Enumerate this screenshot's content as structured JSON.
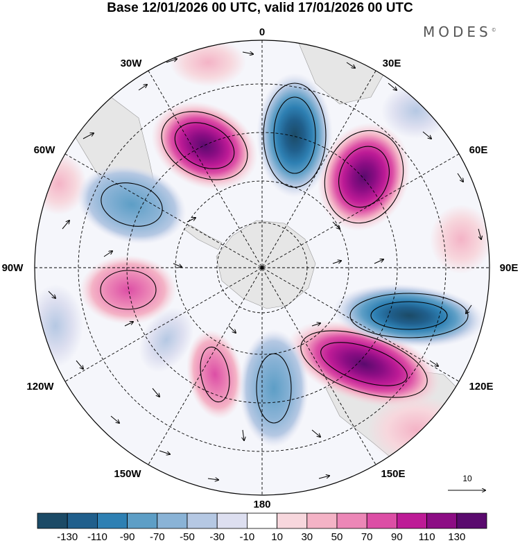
{
  "header": {
    "title": "Base 12/01/2026 00 UTC, valid 17/01/2026 00 UTC",
    "brand": "MODES",
    "brand_mark": "©"
  },
  "map": {
    "projection": "south-polar-stereographic",
    "lon_labels": {
      "lon_0": "0",
      "lon_30e": "30E",
      "lon_60e": "60E",
      "lon_90e": "90E",
      "lon_120e": "120E",
      "lon_150e": "150E",
      "lon_180": "180",
      "lon_150w": "150W",
      "lon_120w": "120W",
      "lon_90w": "90W",
      "lon_60w": "60W",
      "lon_30w": "30W"
    },
    "vector_reference": {
      "label": "10"
    }
  },
  "colorbar": {
    "labels": [
      "-130",
      "-110",
      "-90",
      "-70",
      "-50",
      "-30",
      "-10",
      "10",
      "30",
      "50",
      "70",
      "90",
      "110",
      "130"
    ],
    "colors": [
      "#1b4a66",
      "#205f8c",
      "#2e80b3",
      "#5d9ec6",
      "#8ab3d6",
      "#b5c8e3",
      "#dddff0",
      "#ffffff",
      "#f7d7dd",
      "#f4b3c6",
      "#ec87b7",
      "#dc4ea5",
      "#bd1b96",
      "#8c0d84",
      "#5a0a6e"
    ]
  },
  "colors": {
    "land": "#e6e6e6",
    "neg_strong": "#2e80b3",
    "pos_strong": "#bd1b96"
  }
}
